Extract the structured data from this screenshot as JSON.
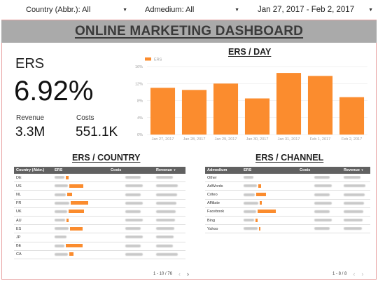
{
  "filters": {
    "country": "Country (Abbr.): All",
    "admedium": "Admedium: All",
    "date_range": "Jan 27, 2017 - Feb 2, 2017"
  },
  "title": "ONLINE MARKETING DASHBOARD",
  "kpi": {
    "ers_label": "ERS",
    "ers_value": "6.92%",
    "revenue_label": "Revenue",
    "revenue_value": "3.3M",
    "costs_label": "Costs",
    "costs_value": "551.1K"
  },
  "sections": {
    "ers_day": "ERS / DAY",
    "ers_country": "ERS / COUNTRY",
    "ers_channel": "ERS / CHANNEL"
  },
  "colors": {
    "bar": "#fb8c2e",
    "header": "#616161",
    "banner": "#aaaaaa"
  },
  "chart_data": {
    "type": "bar",
    "legend": [
      "ERS"
    ],
    "legend_position": "top-left",
    "categories": [
      "Jan 27, 2017",
      "Jan 28, 2017",
      "Jan 29, 2017",
      "Jan 30, 2017",
      "Jan 31, 2017",
      "Feb 1, 2017",
      "Feb 2, 2017"
    ],
    "series": [
      {
        "name": "ERS",
        "values": [
          11.0,
          10.5,
          12.0,
          8.5,
          14.5,
          13.8,
          8.8
        ]
      }
    ],
    "y_ticks": [
      "0%",
      "4%",
      "8%",
      "12%",
      "16%"
    ],
    "ylim": [
      0,
      16
    ],
    "grid": true
  },
  "country_table": {
    "columns": [
      "Country (Abbr.)",
      "ERS",
      "Costs",
      "Revenue"
    ],
    "sort_indicator": "▼",
    "rows": [
      {
        "label": "DE",
        "bar": 0.12
      },
      {
        "label": "US",
        "bar": 0.55
      },
      {
        "label": "NL",
        "bar": 0.2
      },
      {
        "label": "FR",
        "bar": 0.7
      },
      {
        "label": "UK",
        "bar": 0.6
      },
      {
        "label": "AU",
        "bar": 0.08
      },
      {
        "label": "ES",
        "bar": 0.5
      },
      {
        "label": "JP",
        "bar": 0.0
      },
      {
        "label": "BE",
        "bar": 0.68
      },
      {
        "label": "CA",
        "bar": 0.18
      }
    ],
    "pager": "1 - 10 / 76"
  },
  "channel_table": {
    "columns": [
      "Admedium",
      "ERS",
      "Costs",
      "Revenue"
    ],
    "sort_indicator": "▼",
    "rows": [
      {
        "label": "Other",
        "bar": 0.0
      },
      {
        "label": "AdWords",
        "bar": 0.12
      },
      {
        "label": "Criteo",
        "bar": 0.4
      },
      {
        "label": "Affiliate",
        "bar": 0.1
      },
      {
        "label": "Facebook",
        "bar": 0.75
      },
      {
        "label": "Bing",
        "bar": 0.08
      },
      {
        "label": "Yahoo",
        "bar": 0.05
      }
    ],
    "pager": "1 - 8 / 8"
  }
}
